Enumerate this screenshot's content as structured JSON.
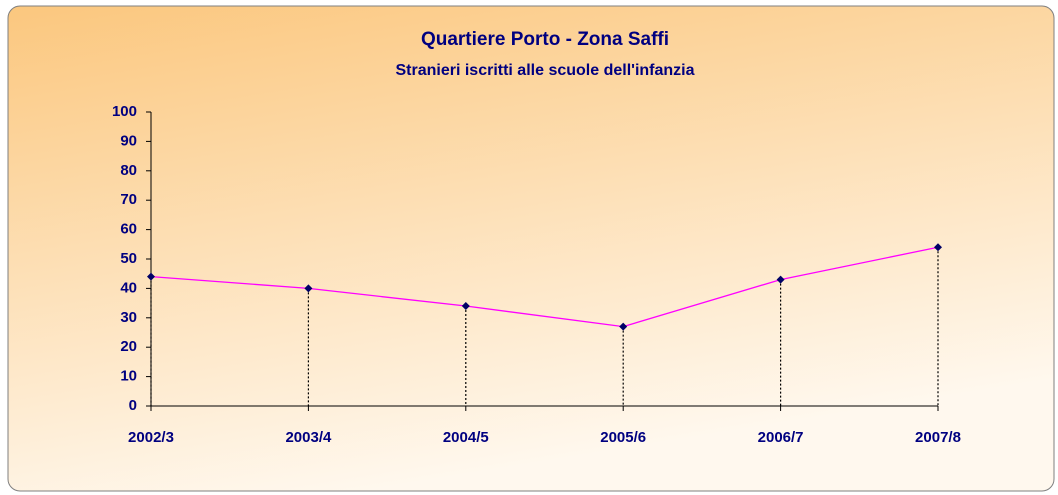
{
  "chart_data": {
    "type": "line",
    "title": "Quartiere Porto - Zona Saffi",
    "subtitle": "Stranieri iscritti alle scuole dell'infanzia",
    "categories": [
      "2002/3",
      "2003/4",
      "2004/5",
      "2005/6",
      "2006/7",
      "2007/8"
    ],
    "series": [
      {
        "name": null,
        "color": "#ff00ff",
        "marker_color": "#000066",
        "values": [
          44,
          40,
          34,
          27,
          43,
          54
        ]
      }
    ],
    "ylim": [
      0,
      100
    ],
    "yticks": [
      0,
      10,
      20,
      30,
      40,
      50,
      60,
      70,
      80,
      90,
      100
    ],
    "grid": false,
    "drop_lines": true
  }
}
